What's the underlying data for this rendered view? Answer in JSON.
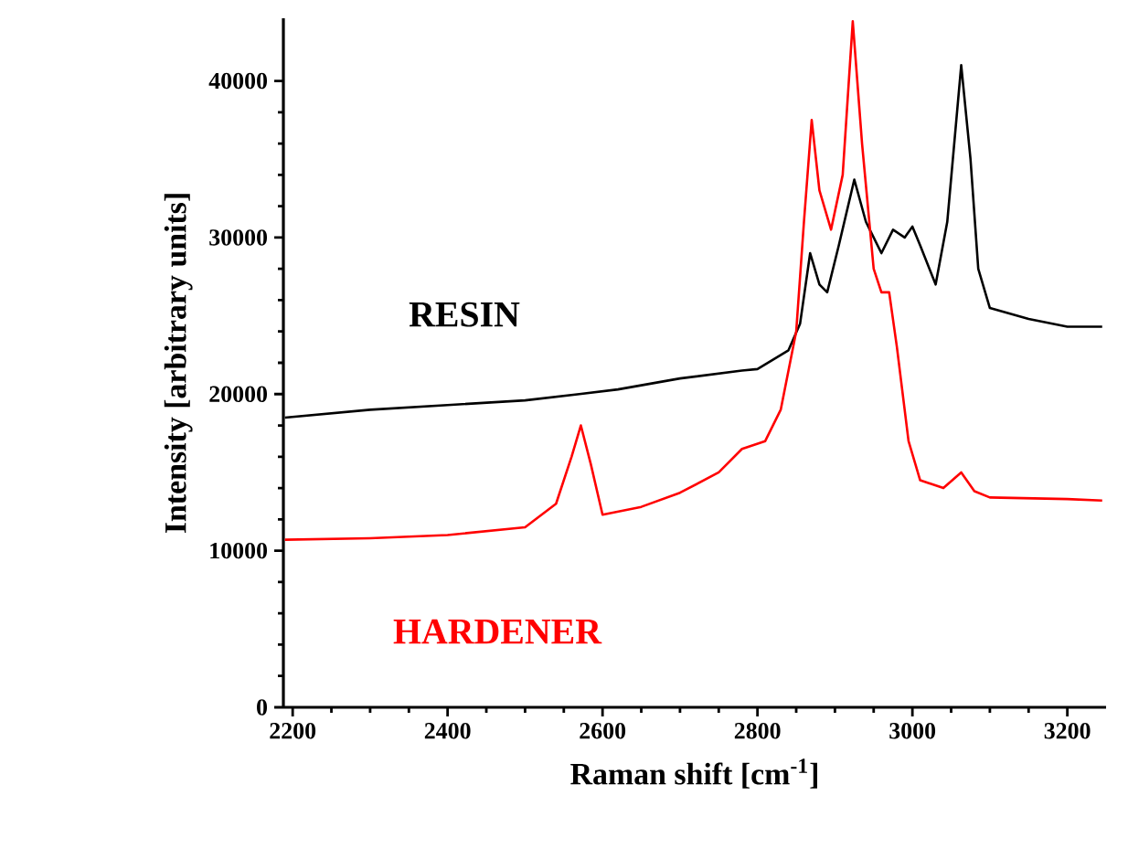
{
  "chart_data": {
    "type": "line",
    "xlabel": "Raman shift [cm$^{-1}$]",
    "ylabel": "Intensity [arbitrary units]",
    "xlim": [
      2188,
      3250
    ],
    "ylim": [
      0,
      44000
    ],
    "xticks": [
      2200,
      2400,
      2600,
      2800,
      3000,
      3200
    ],
    "yticks": [
      0,
      10000,
      20000,
      30000,
      40000
    ],
    "grid": false,
    "legend": false,
    "marker": "none",
    "line_style": "solid",
    "series": [
      {
        "name": "RESIN",
        "color": "#000000",
        "x": [
          2190,
          2300,
          2400,
          2500,
          2570,
          2620,
          2700,
          2780,
          2800,
          2840,
          2855,
          2868,
          2880,
          2890,
          2905,
          2925,
          2940,
          2960,
          2975,
          2990,
          3000,
          3010,
          3030,
          3045,
          3063,
          3075,
          3085,
          3100,
          3150,
          3200,
          3245
        ],
        "values": [
          18500,
          19000,
          19300,
          19600,
          20000,
          20300,
          21000,
          21500,
          21600,
          22800,
          24500,
          29000,
          27000,
          26500,
          29500,
          33700,
          31000,
          29000,
          30500,
          30000,
          30700,
          29500,
          27000,
          31000,
          41000,
          35000,
          28000,
          25500,
          24800,
          24300,
          24300
        ]
      },
      {
        "name": "HARDENER",
        "color": "#ff0000",
        "x": [
          2190,
          2300,
          2400,
          2500,
          2540,
          2560,
          2572,
          2585,
          2600,
          2650,
          2700,
          2750,
          2780,
          2810,
          2830,
          2850,
          2860,
          2870,
          2880,
          2895,
          2910,
          2923,
          2935,
          2950,
          2960,
          2970,
          2980,
          2995,
          3010,
          3040,
          3063,
          3080,
          3100,
          3200,
          3245
        ],
        "values": [
          10700,
          10800,
          11000,
          11500,
          13000,
          16000,
          18000,
          15500,
          12300,
          12800,
          13700,
          15000,
          16500,
          17000,
          19000,
          24000,
          31000,
          37500,
          33000,
          30500,
          34000,
          43800,
          36000,
          28000,
          26500,
          26500,
          23000,
          17000,
          14500,
          14000,
          15000,
          13800,
          13400,
          13300,
          13200
        ]
      }
    ]
  }
}
